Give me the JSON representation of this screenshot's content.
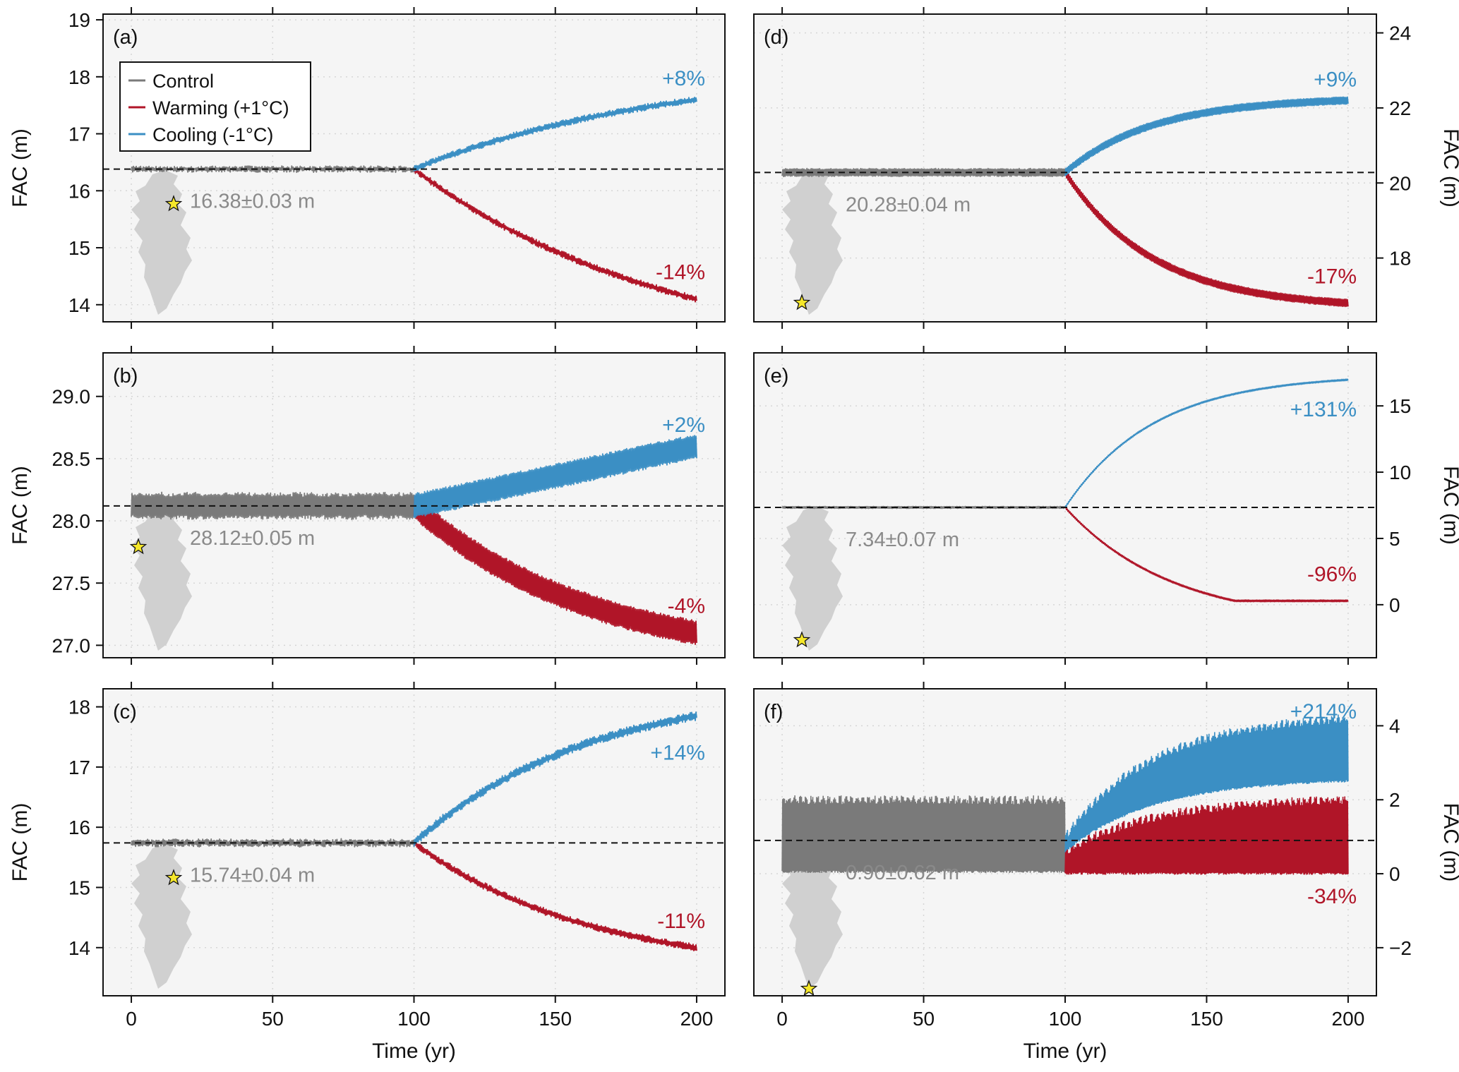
{
  "colors": {
    "control": "#7a7a7a",
    "warming": "#b01528",
    "cooling": "#3b8fc4",
    "panel_bg": "#f5f5f5",
    "greenland": "#d0d0d0",
    "star": "#f5e72a"
  },
  "legend": {
    "placement": "upper-left of panel (a)",
    "items": [
      {
        "label": "Control",
        "color": "#7a7a7a"
      },
      {
        "label": "Warming (+1°C)",
        "color": "#b01528"
      },
      {
        "label": "Cooling (-1°C)",
        "color": "#3b8fc4"
      }
    ]
  },
  "chart_data": [
    {
      "id": "a",
      "letter": "(a)",
      "type": "line",
      "xlabel": "",
      "ylabel": "FAC (m)",
      "yaxis_side": "left",
      "xlim": [
        -10,
        210
      ],
      "ylim": [
        13.7,
        19.1
      ],
      "yticks": [
        14,
        15,
        16,
        17,
        18,
        19
      ],
      "xticks": [
        0,
        50,
        100,
        150,
        200
      ],
      "show_xticklabels": false,
      "baseline": 16.38,
      "baseline_label": "16.38±0.03 m",
      "control": {
        "x_end": 100,
        "mean": 16.38,
        "amplitude": 0.03,
        "noise": 0.03
      },
      "warming": {
        "start": 16.38,
        "end": 14.1,
        "label": "-14%",
        "amplitude": 0.04,
        "noise": 0.04,
        "curve": "gradual"
      },
      "cooling": {
        "start": 16.38,
        "end": 17.6,
        "label": "+8%",
        "amplitude": 0.04,
        "noise": 0.04,
        "curve": "gradual"
      },
      "grid": true,
      "site_on_map": "east-central"
    },
    {
      "id": "b",
      "letter": "(b)",
      "type": "line",
      "xlabel": "",
      "ylabel": "FAC (m)",
      "yaxis_side": "left",
      "xlim": [
        -10,
        210
      ],
      "ylim": [
        26.9,
        29.35
      ],
      "yticks": [
        27.0,
        27.5,
        28.0,
        28.5,
        29.0
      ],
      "ytick_labels": [
        "27.0",
        "27.5",
        "28.0",
        "28.5",
        "29.0"
      ],
      "xticks": [
        0,
        50,
        100,
        150,
        200
      ],
      "show_xticklabels": false,
      "baseline": 28.12,
      "baseline_label": "28.12±0.05 m",
      "control": {
        "x_end": 100,
        "mean": 28.12,
        "amplitude": 0.09,
        "noise": 0.02
      },
      "warming": {
        "start": 28.12,
        "end": 27.1,
        "label": "-4%",
        "amplitude": 0.09,
        "noise": 0.02,
        "curve": "saturating"
      },
      "cooling": {
        "start": 28.12,
        "end": 28.6,
        "label": "+2%",
        "amplitude": 0.09,
        "noise": 0.02,
        "curve": "linear"
      },
      "grid": true,
      "site_on_map": "west-central"
    },
    {
      "id": "c",
      "letter": "(c)",
      "type": "line",
      "xlabel": "Time (yr)",
      "ylabel": "FAC (m)",
      "yaxis_side": "left",
      "xlim": [
        -10,
        210
      ],
      "ylim": [
        13.2,
        18.3
      ],
      "yticks": [
        14,
        15,
        16,
        17,
        18
      ],
      "xticks": [
        0,
        50,
        100,
        150,
        200
      ],
      "show_xticklabels": true,
      "baseline": 15.74,
      "baseline_label": "15.74±0.04 m",
      "control": {
        "x_end": 100,
        "mean": 15.74,
        "amplitude": 0.04,
        "noise": 0.03
      },
      "warming": {
        "start": 15.74,
        "end": 14.0,
        "label": "-11%",
        "amplitude": 0.04,
        "noise": 0.04,
        "curve": "saturating"
      },
      "cooling": {
        "start": 15.74,
        "end": 17.85,
        "label": "+14%",
        "amplitude": 0.05,
        "noise": 0.05,
        "curve": "saturating"
      },
      "grid": true,
      "site_on_map": "east-central"
    },
    {
      "id": "d",
      "letter": "(d)",
      "type": "line",
      "xlabel": "",
      "ylabel": "FAC (m)",
      "yaxis_side": "right",
      "xlim": [
        -10,
        210
      ],
      "ylim": [
        16.3,
        24.5
      ],
      "yticks": [
        18,
        20,
        22,
        24
      ],
      "xticks": [
        0,
        50,
        100,
        150,
        200
      ],
      "show_xticklabels": false,
      "baseline": 20.28,
      "baseline_label": "20.28±0.04 m",
      "control": {
        "x_end": 100,
        "mean": 20.28,
        "amplitude": 0.09,
        "noise": 0.02
      },
      "warming": {
        "start": 20.28,
        "end": 16.8,
        "label": "-17%",
        "amplitude": 0.09,
        "noise": 0.02,
        "curve": "exponential"
      },
      "cooling": {
        "start": 20.28,
        "end": 22.2,
        "label": "+9%",
        "amplitude": 0.09,
        "noise": 0.02,
        "curve": "exponential"
      },
      "grid": true,
      "site_on_map": "south"
    },
    {
      "id": "e",
      "letter": "(e)",
      "type": "line",
      "xlabel": "",
      "ylabel": "FAC (m)",
      "yaxis_side": "right",
      "xlim": [
        -10,
        210
      ],
      "ylim": [
        -4.0,
        19.0
      ],
      "yticks": [
        0,
        5,
        10,
        15
      ],
      "xticks": [
        0,
        50,
        100,
        150,
        200
      ],
      "show_xticklabels": false,
      "baseline": 7.34,
      "baseline_label": "7.34±0.07 m",
      "control": {
        "x_end": 100,
        "mean": 7.34,
        "amplitude": 0.06,
        "noise": 0.02
      },
      "warming": {
        "start": 7.34,
        "end": 0.29,
        "label": "-96%",
        "amplitude": 0.06,
        "noise": 0.02,
        "curve": "floor",
        "floor_year": 160
      },
      "cooling": {
        "start": 7.34,
        "end": 16.97,
        "label": "+131%",
        "amplitude": 0.05,
        "noise": 0.02,
        "curve": "exponential"
      },
      "grid": true,
      "site_on_map": "far-south"
    },
    {
      "id": "f",
      "letter": "(f)",
      "type": "line",
      "xlabel": "Time (yr)",
      "ylabel": "FAC (m)",
      "yaxis_side": "right",
      "xlim": [
        -10,
        210
      ],
      "ylim": [
        -3.3,
        5.0
      ],
      "yticks": [
        -2,
        0,
        2,
        4
      ],
      "ytick_labels": [
        "−2",
        "0",
        "2",
        "4"
      ],
      "xticks": [
        0,
        50,
        100,
        150,
        200
      ],
      "show_xticklabels": true,
      "baseline": 0.9,
      "baseline_label": "0.90±0.62 m",
      "control": {
        "x_end": 100,
        "low": 0.05,
        "high": 2.0,
        "style": "band"
      },
      "warming": {
        "low_start": 0.0,
        "low_end": 0.0,
        "high_start": 0.6,
        "high_end": 2.0,
        "label": "-34%",
        "style": "band"
      },
      "cooling": {
        "low_start": 0.6,
        "low_end": 2.5,
        "high_start": 1.0,
        "high_end": 4.2,
        "label": "+214%",
        "style": "band"
      },
      "grid": true,
      "site_on_map": "far-south"
    }
  ]
}
